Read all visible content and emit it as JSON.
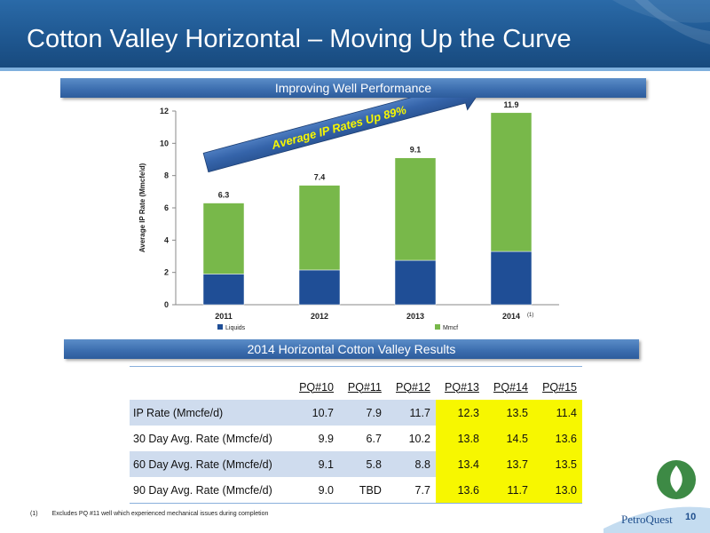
{
  "slide": {
    "title": "Cotton Valley Horizontal – Moving Up the Curve",
    "page_number": "10",
    "logo_text": "PetroQuest",
    "footnote_marker": "(1)",
    "footnote_text": "Excludes PQ #11 well which experienced mechanical issues during completion"
  },
  "banners": {
    "chart": "Improving Well Performance",
    "table": "2014 Horizontal Cotton Valley Results"
  },
  "chart_data": {
    "type": "bar",
    "stacked": true,
    "categories": [
      "2011",
      "2012",
      "2013",
      "2014"
    ],
    "category_note": {
      "2014": "(1)"
    },
    "series": [
      {
        "name": "Liquids",
        "color": "#1f4e96",
        "values": [
          1.9,
          2.15,
          2.75,
          3.3
        ]
      },
      {
        "name": "Mmcf",
        "color": "#78b84a",
        "values": [
          4.4,
          5.25,
          6.35,
          8.6
        ]
      }
    ],
    "totals": [
      "6.3",
      "7.4",
      "9.1",
      "11.9"
    ],
    "total_values": [
      6.3,
      7.4,
      9.1,
      11.9
    ],
    "ylabel": "Average IP Rate (Mmcfe\\d)",
    "ylim": [
      0,
      12
    ],
    "yticks": [
      0,
      2,
      4,
      6,
      8,
      10,
      12
    ],
    "legend_position": "bottom",
    "annotation": "Average IP Rates Up 89%"
  },
  "table": {
    "headers": [
      "PQ#10",
      "PQ#11",
      "PQ#12",
      "PQ#13",
      "PQ#14",
      "PQ#15"
    ],
    "rows": [
      {
        "label": "IP Rate (Mmcfe/d)",
        "values": [
          "10.7",
          "7.9",
          "11.7",
          "12.3",
          "13.5",
          "11.4"
        ]
      },
      {
        "label": "30 Day Avg. Rate (Mmcfe/d)",
        "values": [
          "9.9",
          "6.7",
          "10.2",
          "13.8",
          "14.5",
          "13.6"
        ]
      },
      {
        "label": "60 Day Avg. Rate (Mmcfe/d)",
        "values": [
          "9.1",
          "5.8",
          "8.8",
          "13.4",
          "13.7",
          "13.5"
        ]
      },
      {
        "label": "90 Day Avg. Rate (Mmcfe/d)",
        "values": [
          "9.0",
          "TBD",
          "7.7",
          "13.6",
          "11.7",
          "13.0"
        ]
      }
    ],
    "highlight_color": "#f7f700"
  }
}
